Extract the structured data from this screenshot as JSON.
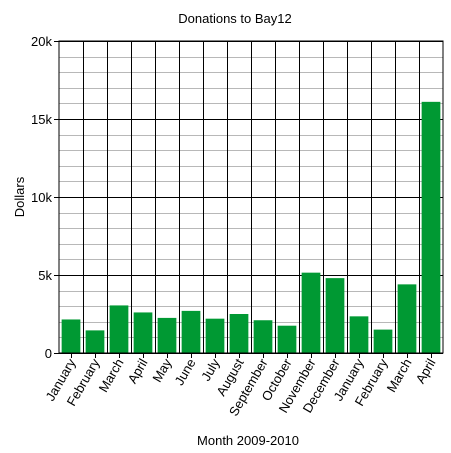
{
  "chart_data": {
    "type": "bar",
    "title": "Donations to Bay12",
    "xlabel": "Month 2009-2010",
    "ylabel": "Dollars",
    "ylim": [
      0,
      20000
    ],
    "yticks": [
      0,
      5000,
      10000,
      15000,
      20000
    ],
    "ytick_labels": [
      "0",
      "5k",
      "10k",
      "15k",
      "20k"
    ],
    "grid": true,
    "bar_color": "#009933",
    "categories": [
      "January",
      "February",
      "March",
      "April",
      "May",
      "June",
      "July",
      "August",
      "September",
      "October",
      "November",
      "December",
      "January",
      "February",
      "March",
      "April"
    ],
    "values": [
      2150,
      1450,
      3050,
      2600,
      2250,
      2700,
      2200,
      2500,
      2100,
      1750,
      5150,
      4800,
      2350,
      1500,
      4400,
      16100
    ]
  }
}
